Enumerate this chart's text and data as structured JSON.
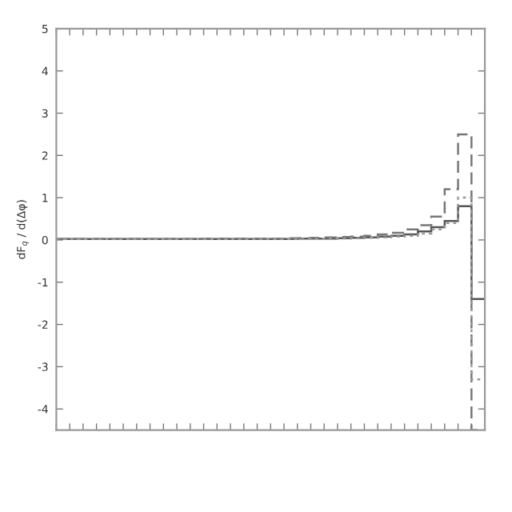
{
  "chart_data": {
    "type": "step",
    "ylabel": "dF$_{q}$ / d(Δφ)",
    "categories": [
      null,
      null,
      null,
      null,
      null,
      null,
      null,
      null,
      null,
      null,
      null,
      null,
      null,
      null,
      null,
      null,
      null,
      null,
      null,
      null,
      null,
      null,
      null,
      null,
      null,
      null,
      null,
      null,
      null,
      null,
      null,
      null
    ],
    "series": [
      {
        "color": "#555555",
        "line_style": "solid",
        "values": [
          0.02,
          0.02,
          0.02,
          0.02,
          0.02,
          0.02,
          0.02,
          0.02,
          0.02,
          0.02,
          0.02,
          0.02,
          0.02,
          0.02,
          0.02,
          0.02,
          0.02,
          0.02,
          0.03,
          0.03,
          0.03,
          0.04,
          0.05,
          0.06,
          0.08,
          0.1,
          0.13,
          0.2,
          0.3,
          0.45,
          0.8,
          -1.4
        ]
      },
      {
        "color": "#777777",
        "line_style": "dashed",
        "values": [
          0.02,
          0.02,
          0.02,
          0.02,
          0.02,
          0.02,
          0.02,
          0.02,
          0.02,
          0.02,
          0.02,
          0.03,
          0.03,
          0.03,
          0.03,
          0.03,
          0.03,
          0.04,
          0.04,
          0.05,
          0.06,
          0.07,
          0.08,
          0.1,
          0.13,
          0.17,
          0.25,
          0.35,
          0.55,
          1.2,
          2.5,
          -4.5
        ]
      },
      {
        "color": "#999999",
        "line_style": "dotted",
        "values": [
          0.02,
          0.02,
          0.02,
          0.02,
          0.02,
          0.02,
          0.02,
          0.02,
          0.02,
          0.02,
          0.02,
          0.02,
          0.02,
          0.02,
          0.02,
          0.02,
          0.02,
          0.02,
          0.02,
          0.03,
          0.03,
          0.03,
          0.04,
          0.05,
          0.06,
          0.08,
          0.1,
          0.15,
          0.25,
          0.4,
          1.0,
          -3.3
        ]
      }
    ],
    "ylim": [
      -4.5,
      5
    ],
    "yticks": [
      -4,
      -3,
      -2,
      -1,
      0,
      1,
      2,
      3,
      4,
      5
    ],
    "grid": false,
    "legend": false
  }
}
